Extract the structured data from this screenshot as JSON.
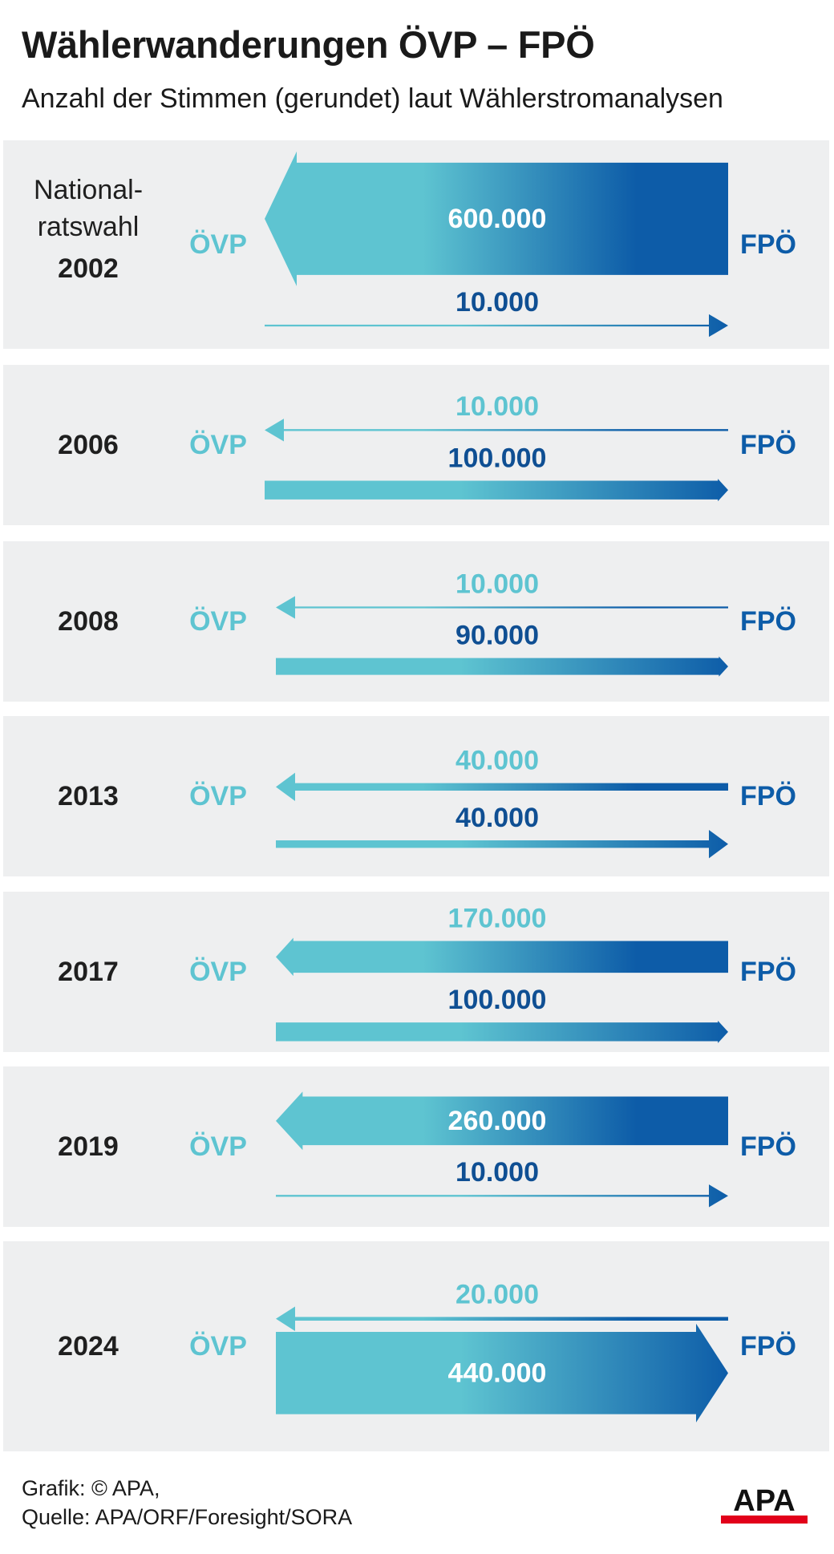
{
  "title": "Wählerwanderungen ÖVP – FPÖ",
  "subtitle": "Anzahl der Stimmen (gerundet) laut Wählerstromanalysen",
  "footer": {
    "credit": "Grafik: © APA,",
    "source": "Quelle: APA/ORF/Foresight/SORA"
  },
  "logo_text": "APA",
  "colors": {
    "ovp": "#5ec4d1",
    "fpo": "#0d5ca8",
    "row_background": "#eeeff0",
    "logo_red": "#e2001a"
  },
  "chart_data": {
    "type": "bar",
    "description_units": "votes",
    "party_left": "ÖVP",
    "party_right": "FPÖ",
    "first_year_prefix": [
      "National-",
      "ratswahl"
    ],
    "categories": [
      "2002",
      "2006",
      "2008",
      "2013",
      "2017",
      "2019",
      "2024"
    ],
    "series": [
      {
        "name": "",
        "direction": "FPÖ → ÖVP",
        "values": [
          600000,
          10000,
          10000,
          40000,
          170000,
          260000,
          20000
        ],
        "labels": [
          "600.000",
          "10.000",
          "10.000",
          "40.000",
          "170.000",
          "260.000",
          "20.000"
        ]
      },
      {
        "name": "",
        "direction": "ÖVP → FPÖ",
        "values": [
          10000,
          100000,
          90000,
          40000,
          100000,
          10000,
          440000
        ],
        "labels": [
          "10.000",
          "100.000",
          "90.000",
          "40.000",
          "100.000",
          "10.000",
          "440.000"
        ]
      }
    ]
  }
}
